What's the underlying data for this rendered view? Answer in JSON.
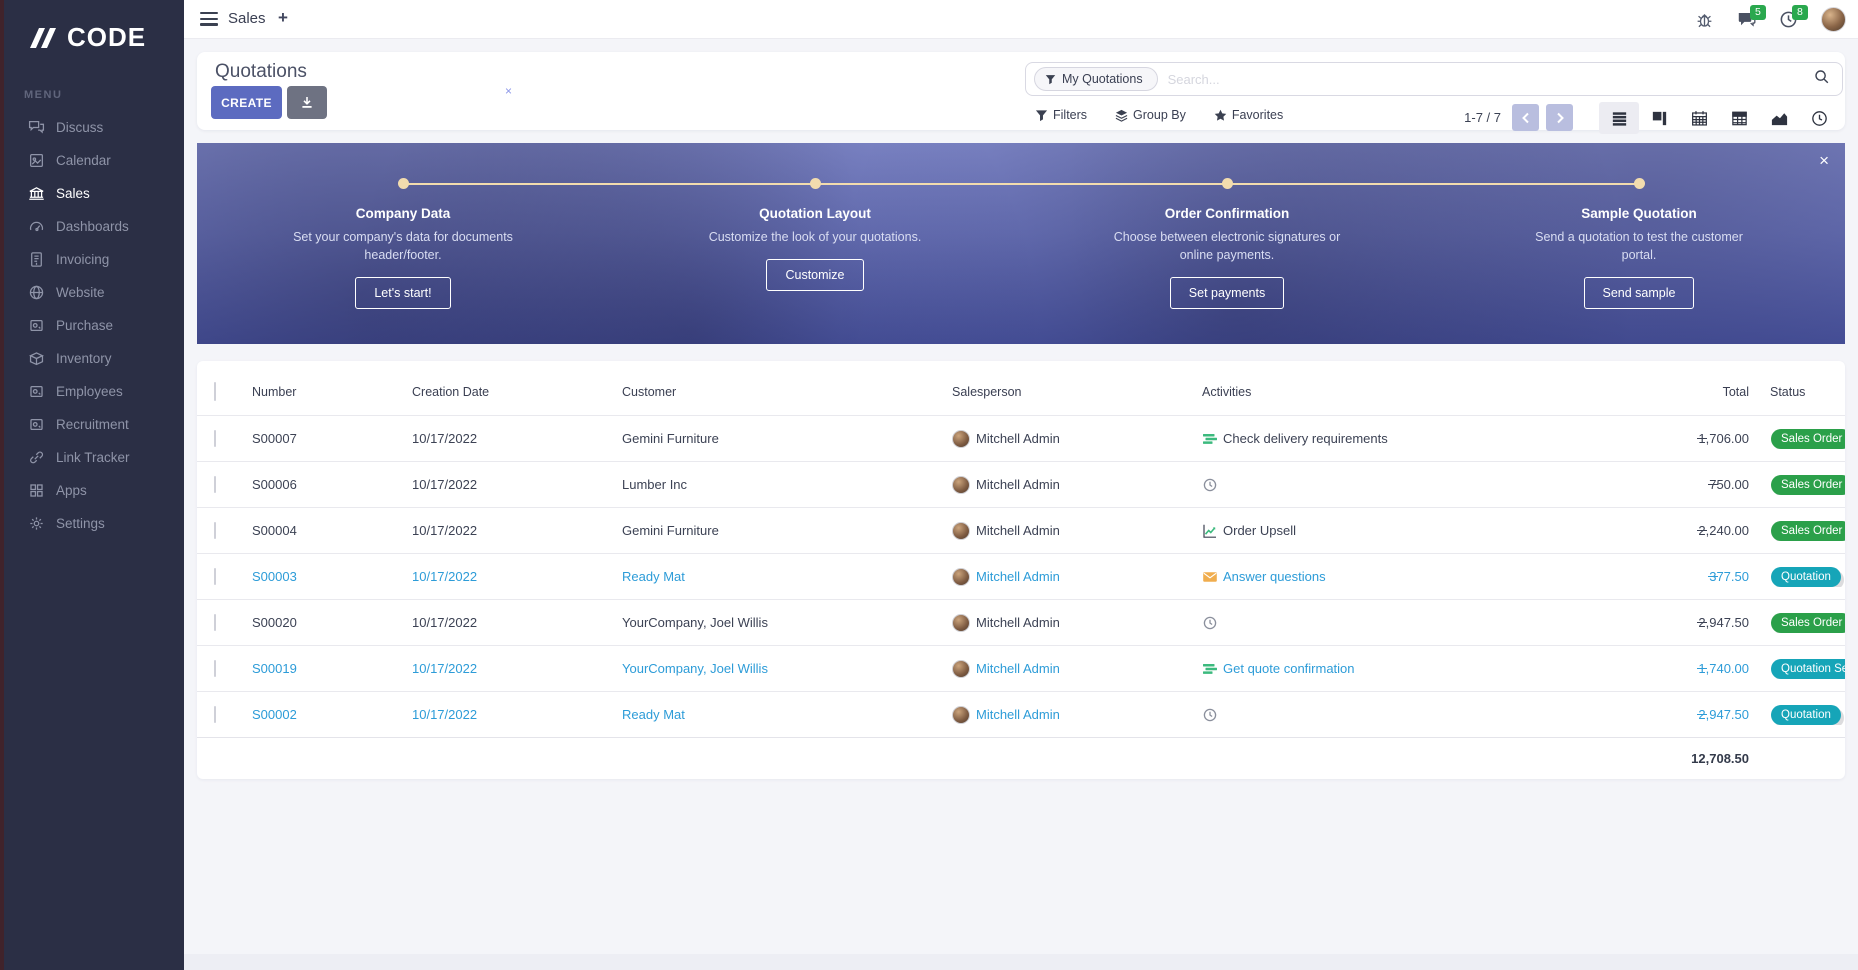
{
  "topbar": {
    "app_label": "Sales",
    "new_tab_label": "+",
    "message_count": "5",
    "activity_count": "8"
  },
  "sidebar": {
    "logo_text": "CODE",
    "menu_label": "MENU",
    "items": [
      {
        "label": "Discuss",
        "icon": "discuss",
        "active": false
      },
      {
        "label": "Calendar",
        "icon": "calendar",
        "active": false
      },
      {
        "label": "Sales",
        "icon": "sales",
        "active": true
      },
      {
        "label": "Dashboards",
        "icon": "dashboards",
        "active": false
      },
      {
        "label": "Invoicing",
        "icon": "invoicing",
        "active": false
      },
      {
        "label": "Website",
        "icon": "website",
        "active": false
      },
      {
        "label": "Purchase",
        "icon": "purchase",
        "active": false
      },
      {
        "label": "Inventory",
        "icon": "inventory",
        "active": false
      },
      {
        "label": "Employees",
        "icon": "employees",
        "active": false
      },
      {
        "label": "Recruitment",
        "icon": "recruitment",
        "active": false
      },
      {
        "label": "Link Tracker",
        "icon": "link",
        "active": false
      },
      {
        "label": "Apps",
        "icon": "apps",
        "active": false
      },
      {
        "label": "Settings",
        "icon": "settings",
        "active": false
      }
    ]
  },
  "control": {
    "title": "Quotations",
    "create_label": "CREATE",
    "facet_label": "My Quotations",
    "facet_remove": "×",
    "search_placeholder": "Search...",
    "filters_label": "Filters",
    "group_by_label": "Group By",
    "favorites_label": "Favorites",
    "pager_display": "1-7 / 7"
  },
  "banner": {
    "close_label": "×",
    "steps": [
      {
        "title": "Company Data",
        "description": "Set your company's data for documents header/footer.",
        "button_label": "Let's start!"
      },
      {
        "title": "Quotation Layout",
        "description": "Customize the look of your quotations.",
        "button_label": "Customize"
      },
      {
        "title": "Order Confirmation",
        "description": "Choose between electronic signatures or online payments.",
        "button_label": "Set payments"
      },
      {
        "title": "Sample Quotation",
        "description": "Send a quotation to test the customer portal.",
        "button_label": "Send sample"
      }
    ]
  },
  "table": {
    "columns": [
      "Number",
      "Creation Date",
      "Customer",
      "Salesperson",
      "Activities",
      "Total",
      "Status"
    ],
    "rows": [
      {
        "number": "S00007",
        "date": "10/17/2022",
        "customer": "Gemini Furniture",
        "salesperson": "Mitchell Admin",
        "activity_icon": "tasks",
        "activity": "Check delivery requirements",
        "total": "1,706.00",
        "status": "Sales Order",
        "status_style": "green",
        "row_style": "default"
      },
      {
        "number": "S00006",
        "date": "10/17/2022",
        "customer": "Lumber Inc",
        "salesperson": "Mitchell Admin",
        "activity_icon": "clock",
        "activity": "",
        "total": "750.00",
        "status": "Sales Order",
        "status_style": "green",
        "row_style": "default"
      },
      {
        "number": "S00004",
        "date": "10/17/2022",
        "customer": "Gemini Furniture",
        "salesperson": "Mitchell Admin",
        "activity_icon": "chart",
        "activity": "Order Upsell",
        "total": "2,240.00",
        "status": "Sales Order",
        "status_style": "green",
        "row_style": "default"
      },
      {
        "number": "S00003",
        "date": "10/17/2022",
        "customer": "Ready Mat",
        "salesperson": "Mitchell Admin",
        "activity_icon": "email",
        "activity": "Answer questions",
        "total": "377.50",
        "status": "Quotation",
        "status_style": "teal",
        "row_style": "link"
      },
      {
        "number": "S00020",
        "date": "10/17/2022",
        "customer": "YourCompany, Joel Willis",
        "salesperson": "Mitchell Admin",
        "activity_icon": "clock",
        "activity": "",
        "total": "2,947.50",
        "status": "Sales Order",
        "status_style": "green",
        "row_style": "default"
      },
      {
        "number": "S00019",
        "date": "10/17/2022",
        "customer": "YourCompany, Joel Willis",
        "salesperson": "Mitchell Admin",
        "activity_icon": "tasks",
        "activity": "Get quote confirmation",
        "total": "1,740.00",
        "status": "Quotation Sent",
        "status_style": "teal",
        "row_style": "link"
      },
      {
        "number": "S00002",
        "date": "10/17/2022",
        "customer": "Ready Mat",
        "salesperson": "Mitchell Admin",
        "activity_icon": "clock",
        "activity": "",
        "total": "2,947.50",
        "status": "Quotation",
        "status_style": "teal",
        "row_style": "link"
      }
    ],
    "footer_total": "12,708.50"
  },
  "colors": {
    "accent": "#5c6bc0",
    "sidebar_bg": "#2b2f45",
    "status_green": "#2ba04a",
    "status_teal": "#16a5b8",
    "link_blue": "#2d9cd8",
    "notification_green": "#2aa84e",
    "banner_gold": "#f2dcae"
  }
}
